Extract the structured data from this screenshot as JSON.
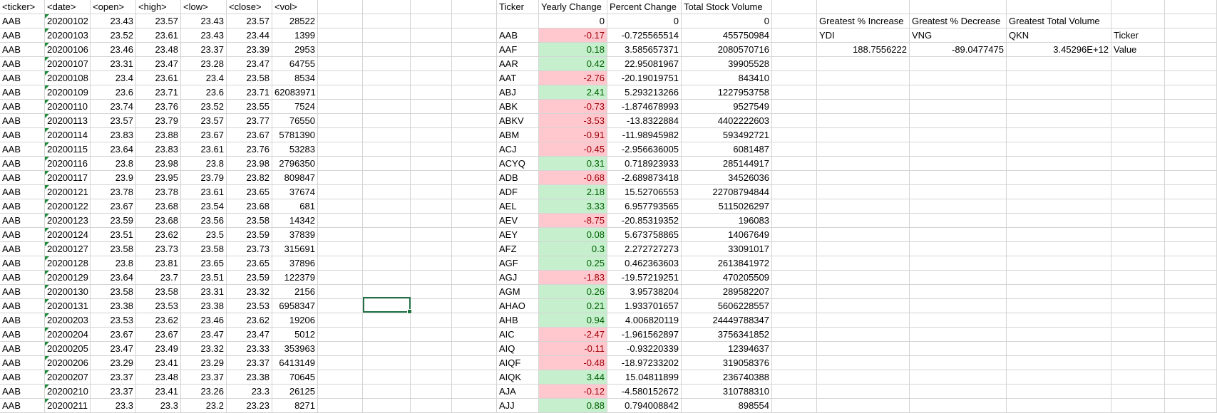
{
  "raw_headers": [
    "<ticker>",
    "<date>",
    "<open>",
    "<high>",
    "<low>",
    "<close>",
    "<vol>"
  ],
  "raw_rows": [
    [
      "AAB",
      "20200102",
      "23.43",
      "23.57",
      "23.43",
      "23.57",
      "28522"
    ],
    [
      "AAB",
      "20200103",
      "23.52",
      "23.61",
      "23.43",
      "23.44",
      "1399"
    ],
    [
      "AAB",
      "20200106",
      "23.46",
      "23.48",
      "23.37",
      "23.39",
      "2953"
    ],
    [
      "AAB",
      "20200107",
      "23.31",
      "23.47",
      "23.28",
      "23.47",
      "64755"
    ],
    [
      "AAB",
      "20200108",
      "23.4",
      "23.61",
      "23.4",
      "23.58",
      "8534"
    ],
    [
      "AAB",
      "20200109",
      "23.6",
      "23.71",
      "23.6",
      "23.71",
      "62083971"
    ],
    [
      "AAB",
      "20200110",
      "23.74",
      "23.76",
      "23.52",
      "23.55",
      "7524"
    ],
    [
      "AAB",
      "20200113",
      "23.57",
      "23.79",
      "23.57",
      "23.77",
      "76550"
    ],
    [
      "AAB",
      "20200114",
      "23.83",
      "23.88",
      "23.67",
      "23.67",
      "5781390"
    ],
    [
      "AAB",
      "20200115",
      "23.64",
      "23.83",
      "23.61",
      "23.76",
      "53283"
    ],
    [
      "AAB",
      "20200116",
      "23.8",
      "23.98",
      "23.8",
      "23.98",
      "2796350"
    ],
    [
      "AAB",
      "20200117",
      "23.9",
      "23.95",
      "23.79",
      "23.82",
      "809847"
    ],
    [
      "AAB",
      "20200121",
      "23.78",
      "23.78",
      "23.61",
      "23.65",
      "37674"
    ],
    [
      "AAB",
      "20200122",
      "23.67",
      "23.68",
      "23.54",
      "23.68",
      "681"
    ],
    [
      "AAB",
      "20200123",
      "23.59",
      "23.68",
      "23.56",
      "23.58",
      "14342"
    ],
    [
      "AAB",
      "20200124",
      "23.51",
      "23.62",
      "23.5",
      "23.59",
      "37839"
    ],
    [
      "AAB",
      "20200127",
      "23.58",
      "23.73",
      "23.58",
      "23.73",
      "315691"
    ],
    [
      "AAB",
      "20200128",
      "23.8",
      "23.81",
      "23.65",
      "23.65",
      "37896"
    ],
    [
      "AAB",
      "20200129",
      "23.64",
      "23.7",
      "23.51",
      "23.59",
      "122379"
    ],
    [
      "AAB",
      "20200130",
      "23.58",
      "23.58",
      "23.31",
      "23.32",
      "2156"
    ],
    [
      "AAB",
      "20200131",
      "23.38",
      "23.53",
      "23.38",
      "23.53",
      "6958347"
    ],
    [
      "AAB",
      "20200203",
      "23.53",
      "23.62",
      "23.46",
      "23.62",
      "19206"
    ],
    [
      "AAB",
      "20200204",
      "23.67",
      "23.67",
      "23.47",
      "23.47",
      "5012"
    ],
    [
      "AAB",
      "20200205",
      "23.47",
      "23.49",
      "23.32",
      "23.33",
      "353963"
    ],
    [
      "AAB",
      "20200206",
      "23.29",
      "23.41",
      "23.29",
      "23.37",
      "6413149"
    ],
    [
      "AAB",
      "20200207",
      "23.37",
      "23.48",
      "23.37",
      "23.38",
      "70645"
    ],
    [
      "AAB",
      "20200210",
      "23.37",
      "23.41",
      "23.26",
      "23.3",
      "26125"
    ],
    [
      "AAB",
      "20200211",
      "23.3",
      "23.3",
      "23.2",
      "23.23",
      "8271"
    ]
  ],
  "summary_headers": [
    "Ticker",
    "Yearly Change",
    "Percent Change",
    "Total Stock Volume"
  ],
  "summary_zero_row": [
    "",
    "0",
    "0",
    "0"
  ],
  "summary_rows": [
    [
      "AAB",
      "-0.17",
      "-0.725565514",
      "455750984"
    ],
    [
      "AAF",
      "0.18",
      "3.585657371",
      "2080570716"
    ],
    [
      "AAR",
      "0.42",
      "22.95081967",
      "39905528"
    ],
    [
      "AAT",
      "-2.76",
      "-20.19019751",
      "843410"
    ],
    [
      "ABJ",
      "2.41",
      "5.293213266",
      "1227953758"
    ],
    [
      "ABK",
      "-0.73",
      "-1.874678993",
      "9527549"
    ],
    [
      "ABKV",
      "-3.53",
      "-13.8322884",
      "4402222603"
    ],
    [
      "ABM",
      "-0.91",
      "-11.98945982",
      "593492721"
    ],
    [
      "ACJ",
      "-0.45",
      "-2.956636005",
      "6081487"
    ],
    [
      "ACYQ",
      "0.31",
      "0.718923933",
      "285144917"
    ],
    [
      "ADB",
      "-0.68",
      "-2.689873418",
      "34526036"
    ],
    [
      "ADF",
      "2.18",
      "15.52706553",
      "22708794844"
    ],
    [
      "AEL",
      "3.33",
      "6.957793565",
      "5115026297"
    ],
    [
      "AEV",
      "-8.75",
      "-20.85319352",
      "196083"
    ],
    [
      "AEY",
      "0.08",
      "5.673758865",
      "14067649"
    ],
    [
      "AFZ",
      "0.3",
      "2.272727273",
      "33091017"
    ],
    [
      "AGF",
      "0.25",
      "0.462363603",
      "2613841972"
    ],
    [
      "AGJ",
      "-1.83",
      "-19.57219251",
      "470205509"
    ],
    [
      "AGM",
      "0.26",
      "3.95738204",
      "289582207"
    ],
    [
      "AHAO",
      "0.21",
      "1.933701657",
      "5606228557"
    ],
    [
      "AHB",
      "0.94",
      "4.006820119",
      "24449788347"
    ],
    [
      "AIC",
      "-2.47",
      "-1.961562897",
      "3756341852"
    ],
    [
      "AIQ",
      "-0.11",
      "-0.93220339",
      "12394637"
    ],
    [
      "AIQF",
      "-0.48",
      "-18.97233202",
      "319058376"
    ],
    [
      "AIQK",
      "3.44",
      "15.04811899",
      "236740388"
    ],
    [
      "AJA",
      "-0.12",
      "-4.580152672",
      "310788310"
    ],
    [
      "AJJ",
      "0.88",
      "0.794008842",
      "898554"
    ]
  ],
  "greatest": {
    "headers": [
      "Greatest % Increase",
      "Greatest % Decrease",
      "Greatest Total Volume"
    ],
    "tickers": [
      "YDI",
      "VNG",
      "QKN"
    ],
    "values": [
      "188.7556222",
      "-89.0477475",
      "3.45296E+12"
    ],
    "row_label_ticker": "Ticker",
    "row_label_value": "Value"
  },
  "colors": {
    "positive_fill": "#c6efce",
    "negative_fill": "#ffc7ce",
    "selection": "#217346",
    "gridline": "#d4d4d4"
  }
}
